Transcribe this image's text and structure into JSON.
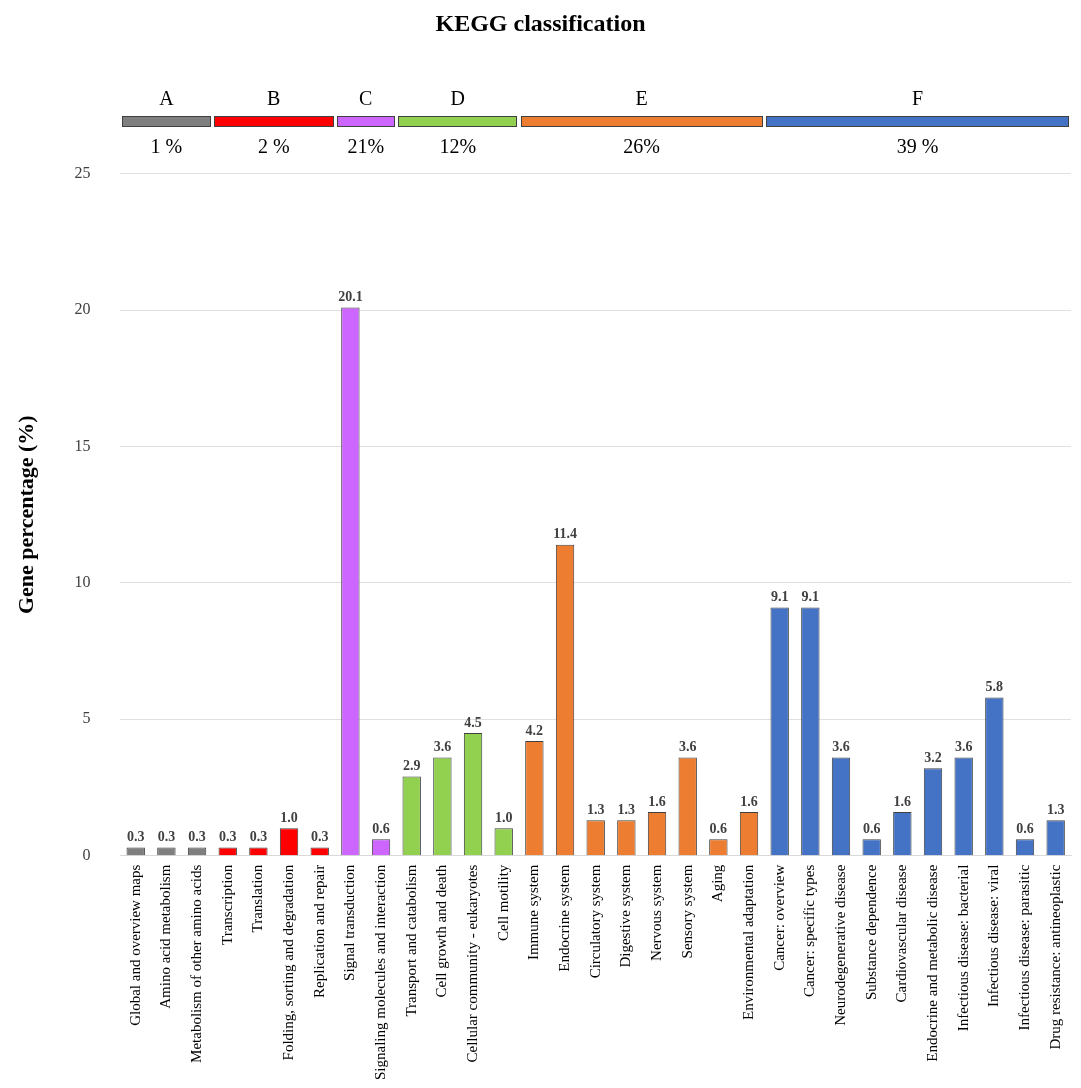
{
  "chart_data": {
    "type": "bar",
    "title": "KEGG classification",
    "ylabel": "Gene percentage (%)",
    "categories": [
      "Global and overview maps",
      "Amino acid metabolism",
      "Metabolism of other amino acids",
      "Transcription",
      "Translation",
      "Folding, sorting and degradation",
      "Replication and repair",
      "Signal transduction",
      "Signaling molecules and interaction",
      "Transport and catabolism",
      "Cell growth and death",
      "Cellular community - eukaryotes",
      "Cell motility",
      "Immune system",
      "Endocrine system",
      "Circulatory system",
      "Digestive system",
      "Nervous system",
      "Sensory system",
      "Aging",
      "Environmental adaptation",
      "Cancer: overview",
      "Cancer: specific types",
      "Neurodegenerative disease",
      "Substance dependence",
      "Cardiovascular disease",
      "Endocrine and metabolic disease",
      "Infectious disease: bacterial",
      "Infectious disease: viral",
      "Infectious disease: parasitic",
      "Drug resistance: antineoplastic"
    ],
    "values": [
      0.3,
      0.3,
      0.3,
      0.3,
      0.3,
      1.0,
      0.3,
      20.1,
      0.6,
      2.9,
      3.6,
      4.5,
      1.0,
      4.2,
      11.4,
      1.3,
      1.3,
      1.6,
      3.6,
      0.6,
      1.6,
      9.1,
      9.1,
      3.6,
      0.6,
      1.6,
      3.2,
      3.6,
      5.8,
      0.6,
      1.3
    ],
    "value_labels": [
      "0.3",
      "0.3",
      "0.3",
      "0.3",
      "0.3",
      "1.0",
      "0.3",
      "20.1",
      "0.6",
      "2.9",
      "3.6",
      "4.5",
      "1.0",
      "4.2",
      "11.4",
      "1.3",
      "1.3",
      "1.6",
      "3.6",
      "0.6",
      "1.6",
      "9.1",
      "9.1",
      "3.6",
      "0.6",
      "1.6",
      "3.2",
      "3.6",
      "5.8",
      "0.6",
      "1.3"
    ],
    "colors": [
      "#7f7f7f",
      "#7f7f7f",
      "#7f7f7f",
      "#ff0000",
      "#ff0000",
      "#ff0000",
      "#ff0000",
      "#cc66ff",
      "#cc66ff",
      "#92d050",
      "#92d050",
      "#92d050",
      "#92d050",
      "#ed7d31",
      "#ed7d31",
      "#ed7d31",
      "#ed7d31",
      "#ed7d31",
      "#ed7d31",
      "#ed7d31",
      "#ed7d31",
      "#4472c4",
      "#4472c4",
      "#4472c4",
      "#4472c4",
      "#4472c4",
      "#4472c4",
      "#4472c4",
      "#4472c4",
      "#4472c4",
      "#4472c4"
    ],
    "annotations": [
      "A",
      "1 %",
      "B",
      "2 %",
      "C",
      "21%",
      "D",
      "12%",
      "E",
      "26%",
      "F",
      "39 %"
    ],
    "ylim": [
      0,
      25
    ],
    "yticks": [
      0,
      5,
      10,
      15,
      20,
      25
    ],
    "grid": "y",
    "legend": false
  }
}
